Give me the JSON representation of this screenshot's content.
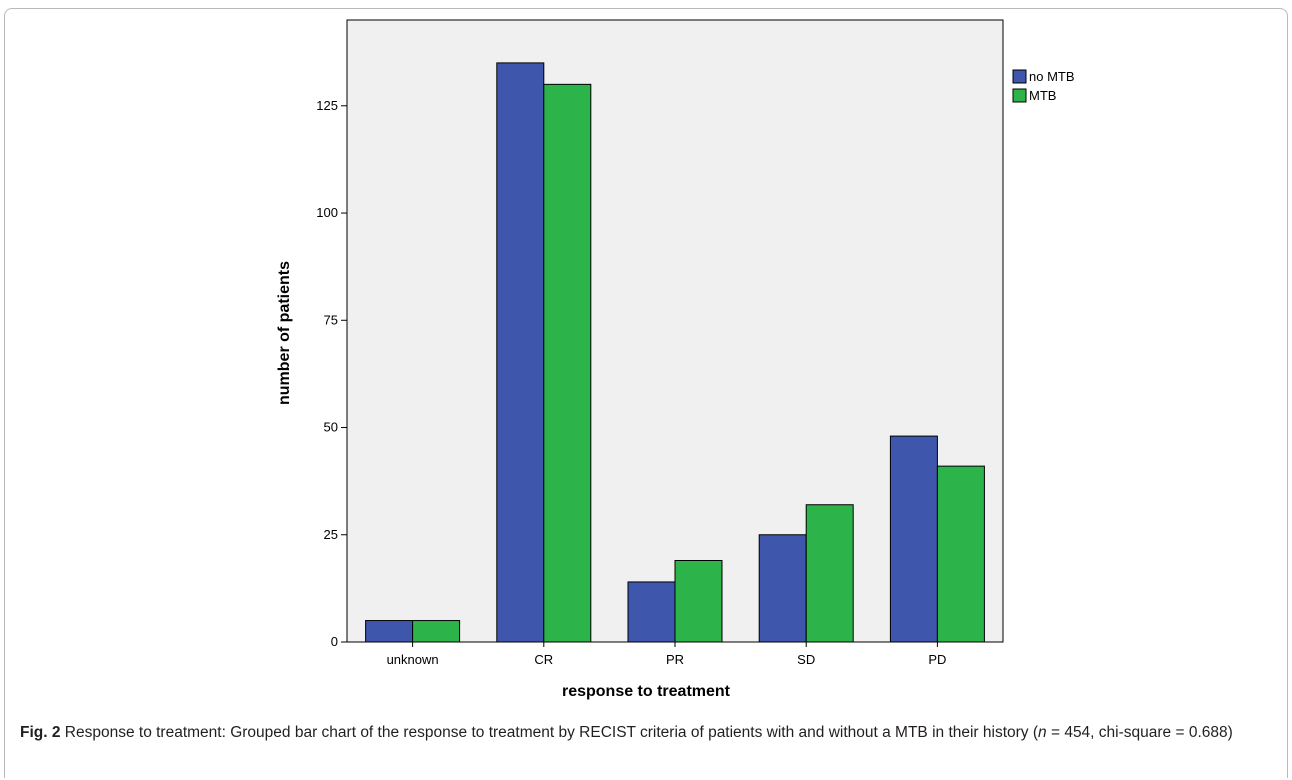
{
  "chart_data": {
    "type": "bar",
    "categories": [
      "unknown",
      "CR",
      "PR",
      "SD",
      "PD"
    ],
    "series": [
      {
        "name": "no MTB",
        "values": [
          5,
          135,
          14,
          25,
          48
        ]
      },
      {
        "name": "MTB",
        "values": [
          5,
          130,
          19,
          32,
          41
        ]
      }
    ],
    "colors": [
      "#3e56ab",
      "#2cb34a"
    ],
    "plot_background": "#f0f0f0",
    "xlabel": "response to treatment",
    "ylabel": "number of patients",
    "yticks": [
      0,
      25,
      50,
      75,
      100,
      125
    ],
    "ylim": [
      0,
      145
    ],
    "grid": false,
    "legend_position": "right"
  },
  "caption": {
    "fig_label": "Fig. 2",
    "text_1": " Response to treatment: Grouped bar chart of the response to treatment by RECIST criteria of patients with and without a MTB in their history (",
    "n_var": "n",
    "text_2": " = 454, chi-square = 0.688)"
  }
}
